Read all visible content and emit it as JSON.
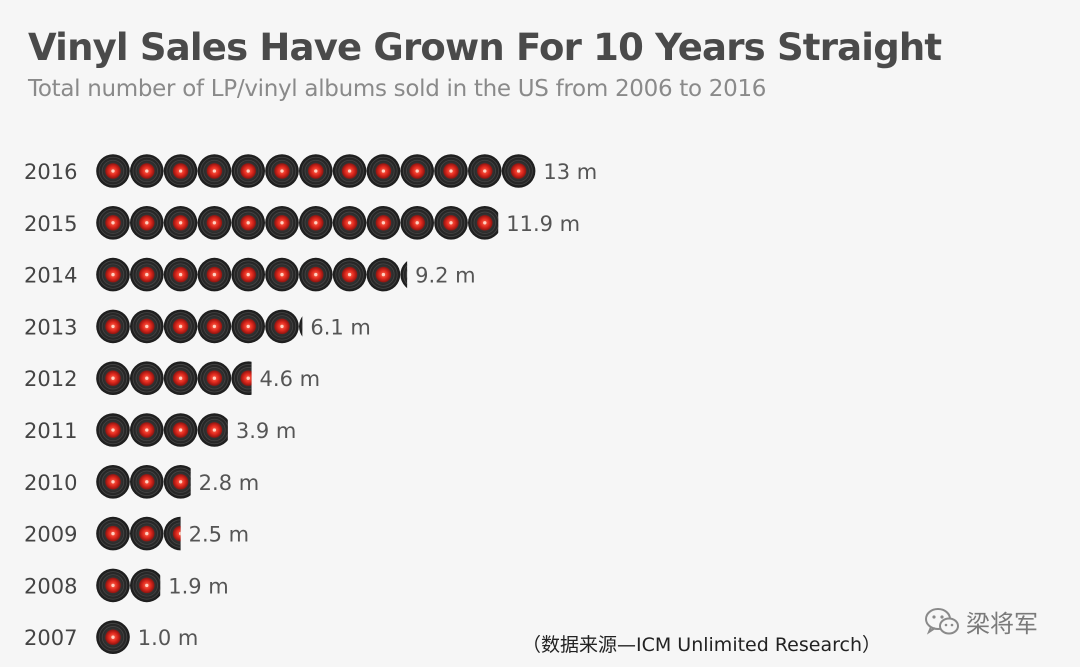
{
  "chart_data": {
    "type": "bar",
    "title": "Vinyl Sales Have Grown For 10 Years Straight",
    "subtitle": "Total number of LP/vinyl albums sold in the US from 2006 to 2016",
    "unit": "m",
    "categories": [
      "2016",
      "2015",
      "2014",
      "2013",
      "2012",
      "2011",
      "2010",
      "2009",
      "2008",
      "2007"
    ],
    "values": [
      13,
      11.9,
      9.2,
      6.1,
      4.6,
      3.9,
      2.8,
      2.5,
      1.9,
      1.0
    ],
    "value_labels": [
      "13 m",
      "11.9 m",
      "9.2 m",
      "6.1 m",
      "4.6 m",
      "3.9 m",
      "2.8 m",
      "2.5 m",
      "1.9 m",
      "1.0 m"
    ],
    "encoding": "pictogram",
    "orientation": "horizontal",
    "grid": false,
    "legend": "none"
  },
  "source": "（数据来源—ICM Unlimited Research）",
  "watermark": {
    "text": "梁将军",
    "icon": "wechat-icon"
  },
  "colors": {
    "record_dark": "#2a2a2a",
    "record_label": "#d9241b",
    "text": "#4a4a4a",
    "subtext": "#8a8a8a"
  }
}
